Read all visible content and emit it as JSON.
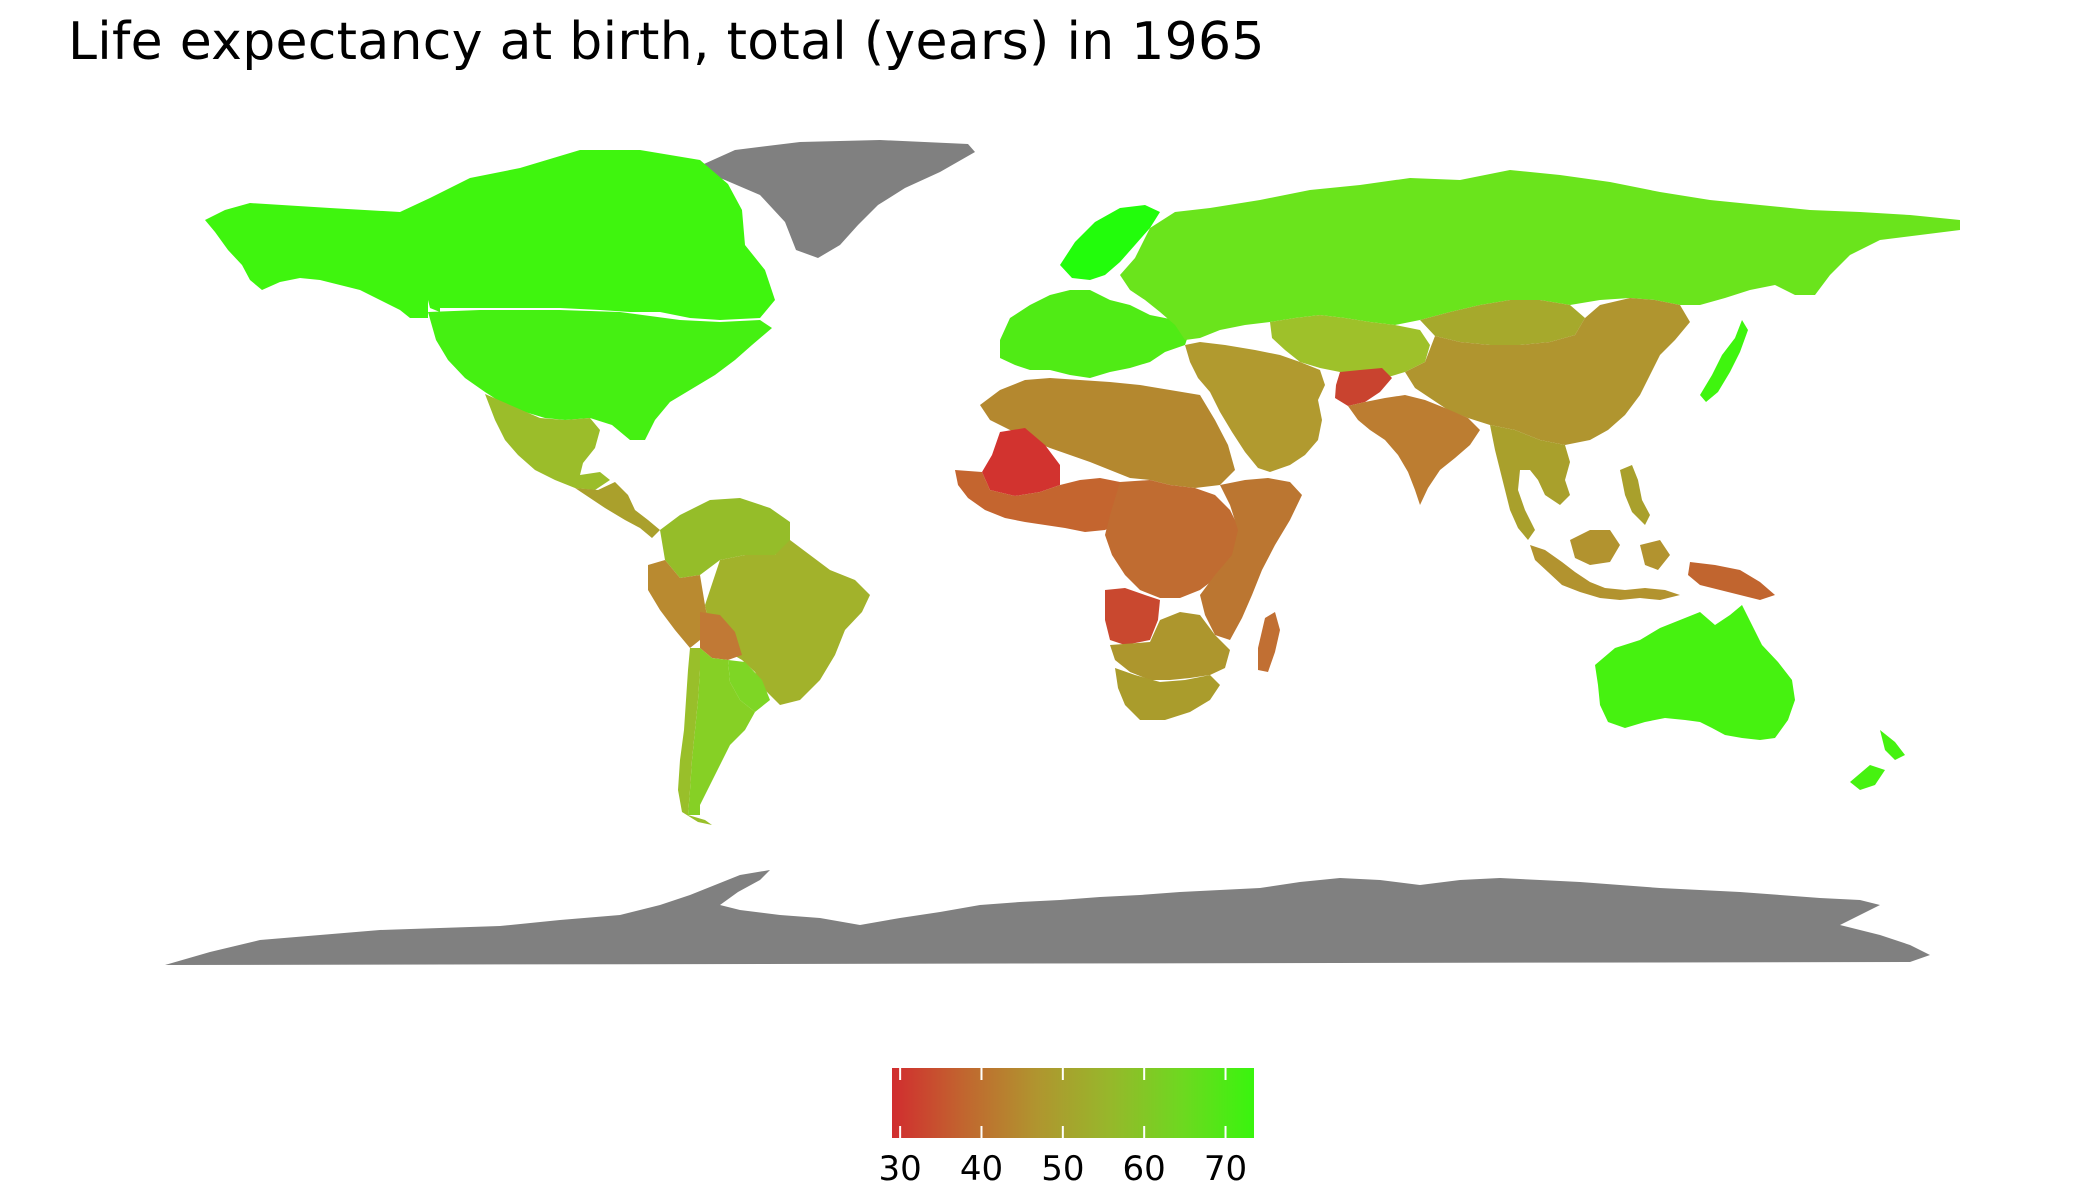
{
  "title": "Life expectancy at birth, total (years) in 1965",
  "map": {
    "projection": "equirectangular",
    "no_data_color": "#808080",
    "ocean_color": "#ffffff"
  },
  "legend": {
    "type": "continuous-colorbar",
    "placement": "bottom-center",
    "min": 29,
    "max": 73.5,
    "ticks": [
      30,
      40,
      50,
      60,
      70
    ],
    "tick_labels": [
      "30",
      "40",
      "50",
      "60",
      "70"
    ],
    "gradient_stops": [
      "#d12d2f",
      "#c1662f",
      "#b0952f",
      "#97b72b",
      "#6ed820",
      "#39f50e"
    ]
  },
  "regions": [
    {
      "name": "Canada",
      "value": 72,
      "color": "#3ff50e"
    },
    {
      "name": "United States",
      "value": 70,
      "color": "#45f012"
    },
    {
      "name": "Mexico",
      "value": 58,
      "color": "#9bbd2a"
    },
    {
      "name": "Central America",
      "value": 52,
      "color": "#aaa02c"
    },
    {
      "name": "Greenland",
      "value": null,
      "color": "#808080"
    },
    {
      "name": "Northern South America",
      "value": 58,
      "color": "#95bd29"
    },
    {
      "name": "Brazil",
      "value": 56,
      "color": "#a2b22b"
    },
    {
      "name": "Peru",
      "value": 48,
      "color": "#b98a30"
    },
    {
      "name": "Bolivia",
      "value": 43,
      "color": "#c17935"
    },
    {
      "name": "Paraguay",
      "value": 63,
      "color": "#7ed625"
    },
    {
      "name": "Argentina",
      "value": 65,
      "color": "#86d025"
    },
    {
      "name": "Chile",
      "value": 58,
      "color": "#99bf2a"
    },
    {
      "name": "Europe",
      "value": 70,
      "color": "#50eb15"
    },
    {
      "name": "Scandinavia",
      "value": 73,
      "color": "#22fd0b"
    },
    {
      "name": "Russia",
      "value": 66,
      "color": "#6ae41c"
    },
    {
      "name": "Central Asia",
      "value": 58,
      "color": "#9ec12a"
    },
    {
      "name": "China",
      "value": 49,
      "color": "#b0952f"
    },
    {
      "name": "Mongolia",
      "value": 55,
      "color": "#a6a92c"
    },
    {
      "name": "Japan",
      "value": 71,
      "color": "#3ff50e"
    },
    {
      "name": "Middle East",
      "value": 52,
      "color": "#b19a2f"
    },
    {
      "name": "Afghanistan",
      "value": 35,
      "color": "#c9432f"
    },
    {
      "name": "India",
      "value": 45,
      "color": "#bc7d31"
    },
    {
      "name": "Southeast Asia",
      "value": 52,
      "color": "#a9a02c"
    },
    {
      "name": "Indonesia",
      "value": 50,
      "color": "#b2932f"
    },
    {
      "name": "Papua New Guinea",
      "value": 42,
      "color": "#c1652f"
    },
    {
      "name": "Australia",
      "value": 71,
      "color": "#46f210"
    },
    {
      "name": "New Zealand",
      "value": 71,
      "color": "#46f210"
    },
    {
      "name": "North Africa",
      "value": 48,
      "color": "#b4882f"
    },
    {
      "name": "Mali",
      "value": 30,
      "color": "#d2332f"
    },
    {
      "name": "West Africa",
      "value": 40,
      "color": "#c4652f"
    },
    {
      "name": "Central Africa",
      "value": 42,
      "color": "#c06c31"
    },
    {
      "name": "East Africa",
      "value": 44,
      "color": "#bb7631"
    },
    {
      "name": "Angola",
      "value": 36,
      "color": "#c9482f"
    },
    {
      "name": "Southern Africa",
      "value": 50,
      "color": "#ad962d"
    },
    {
      "name": "South Africa",
      "value": 52,
      "color": "#aa9c2c"
    },
    {
      "name": "Madagascar",
      "value": 42,
      "color": "#c16f33"
    },
    {
      "name": "Antarctica",
      "value": null,
      "color": "#808080"
    }
  ]
}
